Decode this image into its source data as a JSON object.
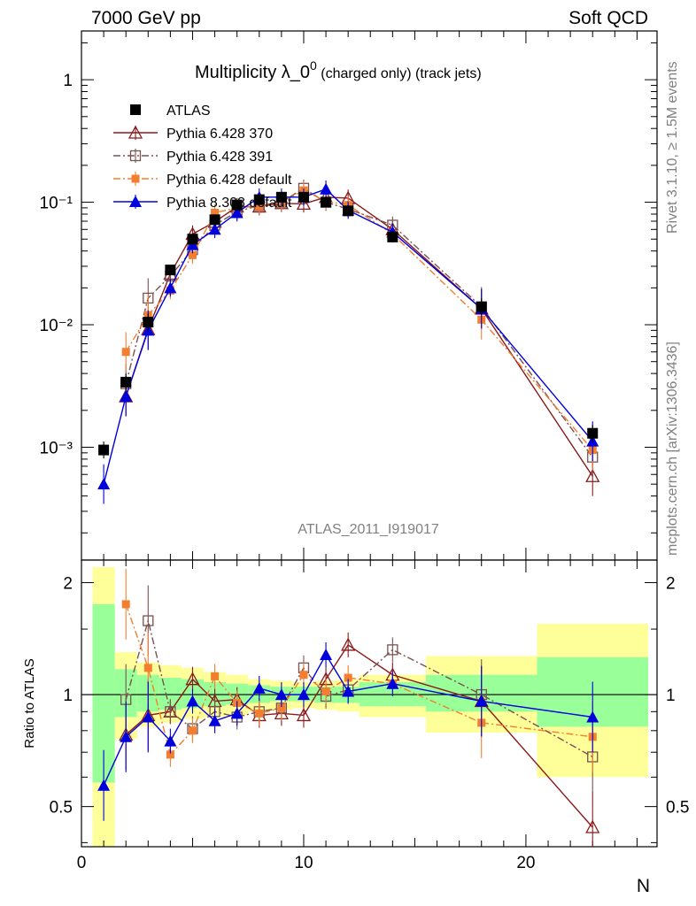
{
  "header": {
    "left": "7000 GeV pp",
    "right": "Soft QCD"
  },
  "side_text": {
    "rivet": "Rivet 3.1.10, ≥ 1.5M events",
    "mcplots": "mcplots.cern.ch [arXiv:1306.3436]"
  },
  "title": {
    "main": "Multiplicity λ_0",
    "sup": "0",
    "rest": " (charged only) (track jets)"
  },
  "watermark": "ATLAS_2011_I919017",
  "axes": {
    "xlabel": "N",
    "ratio_ylabel": "Ratio to ATLAS",
    "main_y_ticks": [
      "10⁻³",
      "10⁻²",
      "10⁻¹",
      "1"
    ],
    "ratio_y_ticks": [
      "0.5",
      "1",
      "2"
    ],
    "x_ticks": [
      "0",
      "10",
      "20"
    ]
  },
  "colors": {
    "atlas": "#000000",
    "p370": "#8b1a1a",
    "p391": "#7a5050",
    "pdef": "#f47e2f",
    "p8": "#0000dd",
    "band_green": "#99ff99",
    "band_yellow": "#ffff99"
  },
  "chart_data": {
    "type": "scatter",
    "main": {
      "yscale": "log",
      "ylim": [
        0.00012,
        2.5
      ],
      "xlim": [
        0,
        25.9
      ],
      "legend_position": "top-left",
      "series": [
        {
          "name": "ATLAS",
          "key": "atlas",
          "marker": "square-filled",
          "line": "none",
          "x": [
            1,
            2,
            3,
            4,
            5,
            6,
            7,
            8,
            9,
            10,
            11,
            12,
            14,
            18,
            23
          ],
          "y": [
            0.00095,
            0.0034,
            0.0105,
            0.028,
            0.05,
            0.072,
            0.095,
            0.105,
            0.11,
            0.11,
            0.1,
            0.085,
            0.052,
            0.014,
            0.0013
          ]
        },
        {
          "name": "Pythia 6.428 370",
          "key": "p370",
          "marker": "triangle-open",
          "line": "solid",
          "x": [
            2,
            3,
            4,
            5,
            6,
            7,
            8,
            9,
            10,
            11,
            12,
            14,
            18,
            23
          ],
          "y": [
            0.0026,
            0.0092,
            0.026,
            0.055,
            0.069,
            0.092,
            0.092,
            0.098,
            0.097,
            0.11,
            0.108,
            0.06,
            0.0135,
            0.00058
          ]
        },
        {
          "name": "Pythia 6.428 391",
          "key": "p391",
          "marker": "square-open",
          "line": "dashdot",
          "x": [
            2,
            3,
            4,
            5,
            6,
            7,
            8,
            9,
            10,
            11,
            12,
            14,
            18,
            23
          ],
          "y": [
            0.0033,
            0.0165,
            0.025,
            0.041,
            0.065,
            0.084,
            0.094,
            0.1,
            0.13,
            0.1,
            0.088,
            0.065,
            0.014,
            0.00083
          ]
        },
        {
          "name": "Pythia 6.428 default",
          "key": "pdef",
          "marker": "square-filled-small",
          "line": "dashdot",
          "x": [
            2,
            3,
            4,
            5,
            6,
            7,
            8,
            9,
            10,
            11,
            12,
            14,
            18,
            23
          ],
          "y": [
            0.006,
            0.012,
            0.019,
            0.037,
            0.082,
            0.09,
            0.093,
            0.1,
            0.125,
            0.102,
            0.095,
            0.055,
            0.011,
            0.00095
          ]
        },
        {
          "name": "Pythia 8.308 default",
          "key": "p8",
          "marker": "triangle-filled",
          "line": "solid",
          "x": [
            1,
            2,
            3,
            4,
            5,
            6,
            7,
            8,
            9,
            10,
            11,
            12,
            14,
            18,
            23
          ],
          "y": [
            0.0005,
            0.0026,
            0.009,
            0.02,
            0.045,
            0.06,
            0.082,
            0.11,
            0.11,
            0.11,
            0.128,
            0.086,
            0.057,
            0.0135,
            0.00112
          ]
        }
      ]
    },
    "ratio": {
      "yscale": "log",
      "ylim": [
        0.39,
        2.3
      ],
      "bins": [
        [
          0.5,
          1.5
        ],
        [
          1.5,
          2.5
        ],
        [
          2.5,
          3.5
        ],
        [
          3.5,
          4.5
        ],
        [
          4.5,
          5.5
        ],
        [
          5.5,
          6.5
        ],
        [
          6.5,
          7.5
        ],
        [
          7.5,
          8.5
        ],
        [
          8.5,
          9.5
        ],
        [
          9.5,
          10.5
        ],
        [
          10.5,
          11.5
        ],
        [
          11.5,
          12.5
        ],
        [
          12.5,
          15.5
        ],
        [
          15.5,
          20.5
        ],
        [
          20.5,
          25.5
        ]
      ],
      "band_green": [
        [
          0.58,
          1.75
        ],
        [
          0.87,
          1.17
        ],
        [
          0.9,
          1.13
        ],
        [
          0.91,
          1.11
        ],
        [
          0.92,
          1.1
        ],
        [
          0.93,
          1.08
        ],
        [
          0.94,
          1.07
        ],
        [
          0.95,
          1.06
        ],
        [
          0.96,
          1.05
        ],
        [
          0.96,
          1.05
        ],
        [
          0.95,
          1.05
        ],
        [
          0.95,
          1.05
        ],
        [
          0.93,
          1.08
        ],
        [
          0.9,
          1.13
        ],
        [
          0.82,
          1.26
        ]
      ],
      "band_yellow": [
        [
          0.34,
          2.2
        ],
        [
          0.76,
          1.3
        ],
        [
          0.82,
          1.22
        ],
        [
          0.84,
          1.2
        ],
        [
          0.86,
          1.18
        ],
        [
          0.87,
          1.15
        ],
        [
          0.88,
          1.13
        ],
        [
          0.9,
          1.1
        ],
        [
          0.91,
          1.09
        ],
        [
          0.92,
          1.08
        ],
        [
          0.91,
          1.09
        ],
        [
          0.9,
          1.1
        ],
        [
          0.87,
          1.13
        ],
        [
          0.79,
          1.27
        ],
        [
          0.6,
          1.55
        ]
      ],
      "series": [
        {
          "key": "p370",
          "x": [
            2,
            3,
            4,
            5,
            6,
            7,
            8,
            9,
            10,
            11,
            12,
            14,
            18,
            23
          ],
          "y": [
            0.78,
            0.88,
            0.9,
            1.1,
            0.96,
            0.97,
            0.88,
            0.89,
            0.88,
            1.1,
            1.36,
            1.13,
            0.96,
            0.44
          ]
        },
        {
          "key": "p391",
          "x": [
            2,
            3,
            4,
            5,
            6,
            7,
            8,
            9,
            10,
            11,
            12,
            14,
            18,
            23
          ],
          "y": [
            0.97,
            1.58,
            0.9,
            0.81,
            0.9,
            0.87,
            0.9,
            0.92,
            1.18,
            0.99,
            1.03,
            1.32,
            1.0,
            0.68
          ]
        },
        {
          "key": "pdef",
          "x": [
            2,
            3,
            4,
            5,
            6,
            7,
            8,
            9,
            10,
            11,
            12,
            14,
            18,
            23
          ],
          "y": [
            1.75,
            1.18,
            0.69,
            0.8,
            1.12,
            0.95,
            0.89,
            0.92,
            1.13,
            1.02,
            1.11,
            1.07,
            0.84,
            0.77
          ]
        },
        {
          "key": "p8",
          "x": [
            1,
            2,
            3,
            4,
            5,
            6,
            7,
            8,
            9,
            10,
            11,
            12,
            14,
            18,
            23
          ],
          "y": [
            0.57,
            0.77,
            0.87,
            0.75,
            0.96,
            0.85,
            0.89,
            1.04,
            1.0,
            1.0,
            1.28,
            1.02,
            1.07,
            0.96,
            0.87
          ]
        }
      ]
    }
  }
}
